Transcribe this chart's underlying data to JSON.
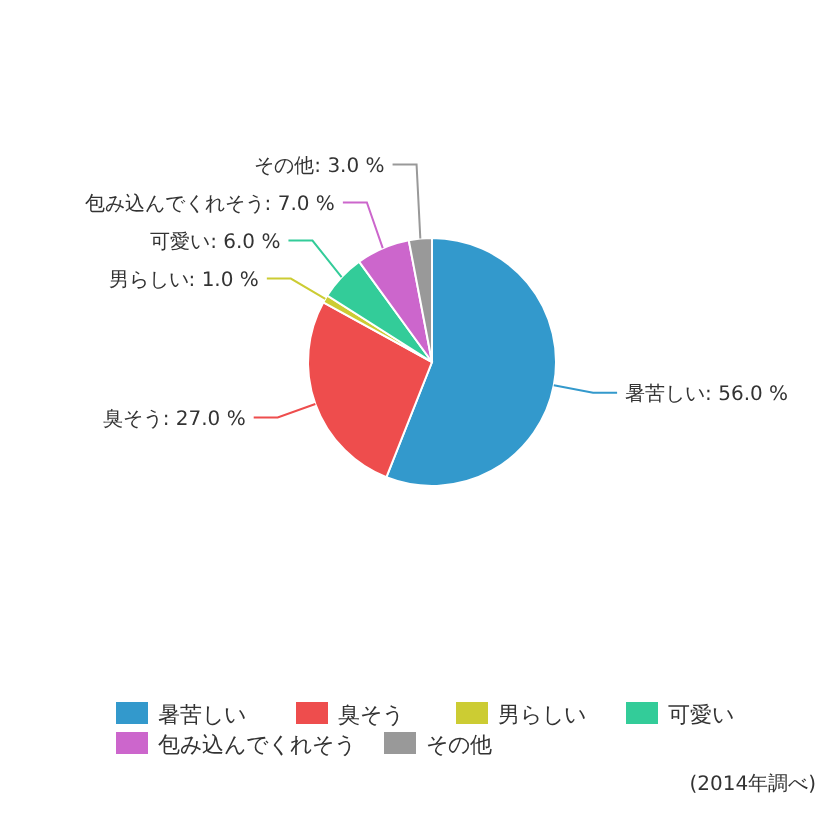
{
  "chart_data": {
    "type": "pie",
    "categories": [
      "暑苦しい",
      "臭そう",
      "男らしい",
      "可愛い",
      "包み込んでくれそう",
      "その他"
    ],
    "values": [
      56,
      27,
      1,
      6,
      7,
      3
    ],
    "colors": [
      "#3399cc",
      "#ee4d4d",
      "#cccc33",
      "#33cc99",
      "#cc66cc",
      "#999999"
    ],
    "value_labels": [
      "暑苦しい: 56.0 %",
      "臭そう: 27.0 %",
      "男らしい: 1.0 %",
      "可愛い: 6.0 %",
      "包み込んでくれそう: 7.0 %",
      "その他: 3.0 %"
    ],
    "legend": "bottom",
    "annotations": [
      "(2014年調べ)"
    ]
  }
}
